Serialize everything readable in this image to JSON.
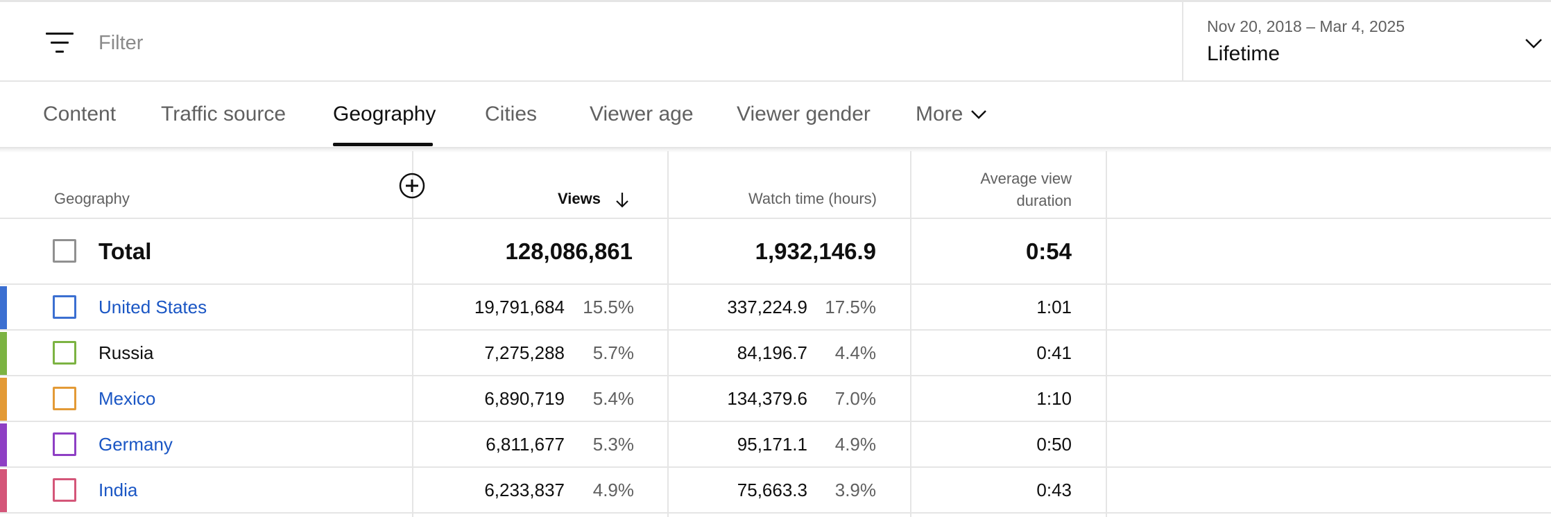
{
  "filter": {
    "placeholder": "Filter",
    "icon": "filter-list-icon"
  },
  "date_picker": {
    "range": "Nov 20, 2018 – Mar 4, 2025",
    "label": "Lifetime",
    "icon": "chevron-down-icon"
  },
  "tabs": [
    {
      "label": "Content",
      "active": false
    },
    {
      "label": "Traffic source",
      "active": false
    },
    {
      "label": "Geography",
      "active": true
    },
    {
      "label": "Cities",
      "active": false
    },
    {
      "label": "Viewer age",
      "active": false
    },
    {
      "label": "Viewer gender",
      "active": false
    },
    {
      "label": "More",
      "active": false
    }
  ],
  "table": {
    "headers": {
      "geography": "Geography",
      "views": "Views",
      "watch_time": "Watch time (hours)",
      "avg_view_duration_line1": "Average view",
      "avg_view_duration_line2": "duration"
    },
    "sort": {
      "column": "views",
      "direction": "descending",
      "icon": "arrow-down-icon"
    },
    "add_column_icon": "add-circle-icon",
    "total": {
      "label": "Total",
      "views": "128,086,861",
      "watch_time": "1,932,146.9",
      "avg_view_duration": "0:54"
    },
    "rows": [
      {
        "name": "United States",
        "link": true,
        "color": "#3b6fd1",
        "views": "19,791,684",
        "views_pct": "15.5%",
        "watch_time": "337,224.9",
        "watch_pct": "17.5%",
        "avg": "1:01"
      },
      {
        "name": "Russia",
        "link": false,
        "color": "#7cb342",
        "views": "7,275,288",
        "views_pct": "5.7%",
        "watch_time": "84,196.7",
        "watch_pct": "4.4%",
        "avg": "0:41"
      },
      {
        "name": "Mexico",
        "link": true,
        "color": "#e39a36",
        "views": "6,890,719",
        "views_pct": "5.4%",
        "watch_time": "134,379.6",
        "watch_pct": "7.0%",
        "avg": "1:10"
      },
      {
        "name": "Germany",
        "link": true,
        "color": "#8e3fc4",
        "views": "6,811,677",
        "views_pct": "5.3%",
        "watch_time": "95,171.1",
        "watch_pct": "4.9%",
        "avg": "0:50"
      },
      {
        "name": "India",
        "link": true,
        "color": "#d45679",
        "views": "6,233,837",
        "views_pct": "4.9%",
        "watch_time": "75,663.3",
        "watch_pct": "3.9%",
        "avg": "0:43"
      }
    ]
  }
}
